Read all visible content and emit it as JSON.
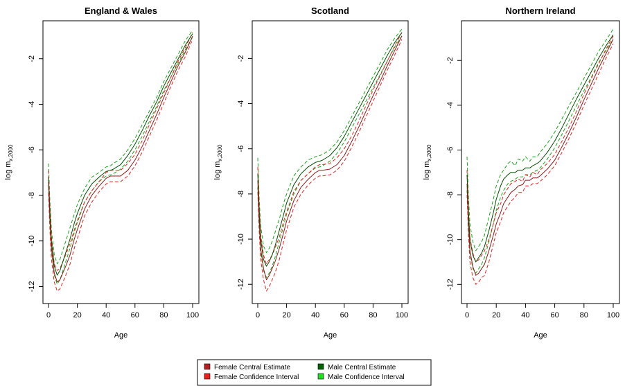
{
  "chart_data": {
    "type": "line",
    "x_name": "Age",
    "legend_placement": "bottom-center",
    "legend": [
      {
        "label": "Female Central Estimate",
        "color": "#b22222"
      },
      {
        "label": "Female Confidence Interval",
        "color": "#e8231e"
      },
      {
        "label": "Male Central Estimate",
        "color": "#006400"
      },
      {
        "label": "Male Confidence Interval",
        "color": "#22dd22"
      }
    ],
    "colors": {
      "female_central": "#8b1a1a",
      "female_ci": "#e8231e",
      "male_central": "#004d00",
      "male_ci": "#1aa31a"
    },
    "panels": [
      {
        "title": "England & Wales",
        "xlabel": "Age",
        "ylabel": "log m",
        "ylabel_sub": "x,2000",
        "xlim": [
          0,
          100
        ],
        "ylim": [
          -12.2,
          -0.7
        ],
        "x_ticks": [
          "0",
          "20",
          "40",
          "60",
          "80",
          "100"
        ],
        "y_ticks": [
          "-2",
          "-4",
          "-6",
          "-8",
          "-10",
          "-12"
        ],
        "x": [
          0,
          1,
          2,
          4,
          6,
          8,
          10,
          12,
          15,
          18,
          20,
          25,
          30,
          35,
          40,
          43,
          45,
          50,
          55,
          60,
          65,
          70,
          75,
          80,
          85,
          90,
          95,
          100
        ],
        "series": [
          {
            "role": "male_ci_upper",
            "values": [
              -6.6,
              -8.3,
              -9.5,
              -10.6,
              -11.0,
              -10.8,
              -10.4,
              -10.0,
              -9.4,
              -8.8,
              -8.4,
              -7.7,
              -7.2,
              -7.0,
              -6.75,
              -6.7,
              -6.6,
              -6.4,
              -6.0,
              -5.5,
              -4.9,
              -4.3,
              -3.7,
              -3.0,
              -2.4,
              -1.8,
              -1.2,
              -0.75
            ]
          },
          {
            "role": "male_central",
            "values": [
              -7.2,
              -8.8,
              -10.0,
              -11.1,
              -11.5,
              -11.3,
              -10.9,
              -10.5,
              -9.9,
              -9.2,
              -8.8,
              -8.0,
              -7.5,
              -7.2,
              -6.95,
              -6.9,
              -6.85,
              -6.65,
              -6.25,
              -5.75,
              -5.15,
              -4.5,
              -3.9,
              -3.2,
              -2.6,
              -2.0,
              -1.4,
              -0.9
            ]
          },
          {
            "role": "male_ci_lower",
            "values": [
              -7.6,
              -9.2,
              -10.4,
              -11.5,
              -11.9,
              -11.7,
              -11.3,
              -10.9,
              -10.3,
              -9.6,
              -9.2,
              -8.3,
              -7.8,
              -7.4,
              -7.15,
              -7.1,
              -7.05,
              -6.85,
              -6.5,
              -6.0,
              -5.4,
              -4.75,
              -4.1,
              -3.4,
              -2.8,
              -2.2,
              -1.6,
              -1.05
            ]
          },
          {
            "role": "female_ci_upper",
            "values": [
              -6.9,
              -8.6,
              -9.8,
              -11.0,
              -11.3,
              -11.2,
              -10.9,
              -10.6,
              -10.1,
              -9.5,
              -9.1,
              -8.3,
              -7.8,
              -7.4,
              -7.0,
              -6.9,
              -6.9,
              -6.9,
              -6.6,
              -6.2,
              -5.6,
              -4.9,
              -4.2,
              -3.5,
              -2.8,
              -2.1,
              -1.5,
              -0.85
            ]
          },
          {
            "role": "female_central",
            "values": [
              -7.4,
              -9.1,
              -10.3,
              -11.4,
              -11.8,
              -11.7,
              -11.4,
              -11.1,
              -10.6,
              -9.9,
              -9.5,
              -8.6,
              -8.0,
              -7.6,
              -7.25,
              -7.15,
              -7.15,
              -7.15,
              -6.9,
              -6.45,
              -5.85,
              -5.15,
              -4.45,
              -3.7,
              -3.0,
              -2.3,
              -1.7,
              -1.0
            ]
          },
          {
            "role": "female_ci_lower",
            "values": [
              -7.9,
              -9.6,
              -10.8,
              -11.8,
              -12.2,
              -12.1,
              -11.8,
              -11.5,
              -11.0,
              -10.3,
              -9.9,
              -8.9,
              -8.3,
              -7.85,
              -7.5,
              -7.4,
              -7.4,
              -7.4,
              -7.15,
              -6.7,
              -6.1,
              -5.4,
              -4.7,
              -3.95,
              -3.2,
              -2.5,
              -1.9,
              -1.15
            ]
          }
        ]
      },
      {
        "title": "Scotland",
        "xlabel": "Age",
        "ylabel": "log m",
        "ylabel_sub": "x,2000",
        "xlim": [
          0,
          100
        ],
        "ylim": [
          -12.3,
          -0.7
        ],
        "x_ticks": [
          "0",
          "20",
          "40",
          "60",
          "80",
          "100"
        ],
        "y_ticks": [
          "-2",
          "-4",
          "-6",
          "-8",
          "-10",
          "-12"
        ],
        "x": [
          0,
          1,
          2,
          4,
          6,
          8,
          10,
          12,
          15,
          18,
          20,
          25,
          30,
          35,
          40,
          43,
          45,
          50,
          55,
          60,
          65,
          70,
          75,
          80,
          85,
          90,
          95,
          100
        ],
        "series": [
          {
            "role": "male_ci_upper",
            "values": [
              -6.4,
              -8.2,
              -9.4,
              -10.3,
              -10.6,
              -10.4,
              -10.1,
              -9.7,
              -9.1,
              -8.4,
              -8.0,
              -7.2,
              -6.8,
              -6.5,
              -6.35,
              -6.3,
              -6.25,
              -6.05,
              -5.7,
              -5.2,
              -4.6,
              -4.0,
              -3.4,
              -2.8,
              -2.2,
              -1.6,
              -1.1,
              -0.7
            ]
          },
          {
            "role": "male_central",
            "values": [
              -7.1,
              -8.8,
              -10.0,
              -10.9,
              -11.2,
              -11.0,
              -10.7,
              -10.3,
              -9.6,
              -8.9,
              -8.4,
              -7.6,
              -7.1,
              -6.8,
              -6.6,
              -6.55,
              -6.5,
              -6.3,
              -5.95,
              -5.45,
              -4.85,
              -4.25,
              -3.65,
              -3.05,
              -2.45,
              -1.85,
              -1.3,
              -0.85
            ]
          },
          {
            "role": "male_ci_lower",
            "values": [
              -7.7,
              -9.4,
              -10.6,
              -11.4,
              -11.7,
              -11.5,
              -11.2,
              -10.8,
              -10.1,
              -9.4,
              -8.9,
              -8.0,
              -7.4,
              -7.1,
              -6.85,
              -6.8,
              -6.75,
              -6.55,
              -6.2,
              -5.7,
              -5.1,
              -4.5,
              -3.9,
              -3.3,
              -2.7,
              -2.1,
              -1.5,
              -1.0
            ]
          },
          {
            "role": "female_ci_upper",
            "values": [
              -6.8,
              -8.6,
              -9.8,
              -10.7,
              -11.1,
              -10.9,
              -10.7,
              -10.4,
              -9.9,
              -9.2,
              -8.8,
              -7.9,
              -7.4,
              -7.1,
              -6.8,
              -6.7,
              -6.7,
              -6.65,
              -6.4,
              -6.0,
              -5.45,
              -4.8,
              -4.1,
              -3.4,
              -2.75,
              -2.1,
              -1.45,
              -0.85
            ]
          },
          {
            "role": "female_central",
            "values": [
              -7.4,
              -9.2,
              -10.4,
              -11.3,
              -11.8,
              -11.6,
              -11.3,
              -11.0,
              -10.4,
              -9.7,
              -9.2,
              -8.3,
              -7.7,
              -7.35,
              -7.05,
              -6.95,
              -6.95,
              -6.9,
              -6.7,
              -6.3,
              -5.7,
              -5.05,
              -4.35,
              -3.65,
              -3.0,
              -2.3,
              -1.65,
              -1.0
            ]
          },
          {
            "role": "female_ci_lower",
            "values": [
              -7.9,
              -9.7,
              -10.9,
              -11.8,
              -12.3,
              -12.1,
              -11.8,
              -11.5,
              -10.9,
              -10.1,
              -9.6,
              -8.6,
              -8.0,
              -7.6,
              -7.3,
              -7.2,
              -7.2,
              -7.15,
              -6.95,
              -6.55,
              -5.95,
              -5.3,
              -4.6,
              -3.9,
              -3.2,
              -2.5,
              -1.85,
              -1.15
            ]
          }
        ]
      },
      {
        "title": "Northern Ireland",
        "xlabel": "Age",
        "ylabel": "log m",
        "ylabel_sub": "x,2000",
        "xlim": [
          0,
          100
        ],
        "ylim": [
          -12.3,
          -0.6
        ],
        "x_ticks": [
          "0",
          "20",
          "40",
          "60",
          "80",
          "100"
        ],
        "y_ticks": [
          "-2",
          "-4",
          "-6",
          "-8",
          "-10",
          "-12"
        ],
        "x": [
          0,
          1,
          2,
          4,
          6,
          8,
          10,
          12,
          15,
          18,
          20,
          23,
          25,
          28,
          30,
          33,
          35,
          38,
          40,
          43,
          45,
          48,
          50,
          55,
          60,
          65,
          70,
          75,
          80,
          85,
          90,
          95,
          100
        ],
        "series": [
          {
            "role": "male_ci_upper",
            "values": [
              -6.3,
              -8.1,
              -9.3,
              -10.1,
              -10.5,
              -10.3,
              -10.1,
              -9.8,
              -9.0,
              -8.2,
              -7.6,
              -7.1,
              -6.9,
              -6.6,
              -6.5,
              -6.7,
              -6.4,
              -6.5,
              -6.3,
              -6.5,
              -6.3,
              -6.3,
              -6.1,
              -5.7,
              -5.2,
              -4.6,
              -4.0,
              -3.4,
              -2.8,
              -2.2,
              -1.6,
              -1.1,
              -0.6
            ]
          },
          {
            "role": "male_central",
            "values": [
              -7.1,
              -8.8,
              -10.0,
              -10.7,
              -11.0,
              -10.8,
              -10.6,
              -10.3,
              -9.6,
              -8.8,
              -8.2,
              -7.6,
              -7.3,
              -7.1,
              -7.0,
              -7.0,
              -6.9,
              -6.9,
              -6.8,
              -6.8,
              -6.7,
              -6.6,
              -6.5,
              -6.1,
              -5.6,
              -5.0,
              -4.35,
              -3.7,
              -3.1,
              -2.5,
              -1.9,
              -1.35,
              -0.85
            ]
          },
          {
            "role": "male_ci_lower",
            "values": [
              -7.8,
              -9.4,
              -10.6,
              -11.3,
              -11.5,
              -11.3,
              -11.1,
              -10.8,
              -10.1,
              -9.3,
              -8.7,
              -8.1,
              -7.8,
              -7.5,
              -7.4,
              -7.3,
              -7.2,
              -7.2,
              -7.1,
              -7.1,
              -7.0,
              -6.9,
              -6.8,
              -6.4,
              -5.9,
              -5.3,
              -4.65,
              -4.0,
              -3.35,
              -2.75,
              -2.1,
              -1.55,
              -1.05
            ]
          },
          {
            "role": "female_ci_upper",
            "values": [
              -6.9,
              -8.7,
              -9.9,
              -10.6,
              -11.0,
              -10.9,
              -10.7,
              -10.5,
              -10.0,
              -9.3,
              -8.8,
              -8.4,
              -8.0,
              -7.7,
              -7.5,
              -7.4,
              -7.3,
              -7.4,
              -7.1,
              -7.2,
              -7.0,
              -7.1,
              -6.9,
              -6.6,
              -6.2,
              -5.6,
              -4.95,
              -4.25,
              -3.5,
              -2.8,
              -2.15,
              -1.5,
              -0.9
            ]
          },
          {
            "role": "female_central",
            "values": [
              -7.5,
              -9.3,
              -10.5,
              -11.2,
              -11.6,
              -11.5,
              -11.3,
              -11.1,
              -10.5,
              -9.8,
              -9.3,
              -8.8,
              -8.4,
              -8.1,
              -7.9,
              -7.75,
              -7.6,
              -7.55,
              -7.35,
              -7.35,
              -7.25,
              -7.25,
              -7.15,
              -6.85,
              -6.45,
              -5.85,
              -5.2,
              -4.5,
              -3.75,
              -3.05,
              -2.35,
              -1.7,
              -1.05
            ]
          },
          {
            "role": "female_ci_lower",
            "values": [
              -8.0,
              -9.8,
              -11.0,
              -11.7,
              -12.0,
              -11.9,
              -11.7,
              -11.6,
              -11.0,
              -10.2,
              -9.7,
              -9.2,
              -8.8,
              -8.5,
              -8.3,
              -8.1,
              -7.9,
              -7.9,
              -7.6,
              -7.6,
              -7.5,
              -7.5,
              -7.4,
              -7.1,
              -6.7,
              -6.1,
              -5.45,
              -4.75,
              -4.0,
              -3.3,
              -2.6,
              -1.9,
              -1.25
            ]
          }
        ]
      }
    ]
  }
}
